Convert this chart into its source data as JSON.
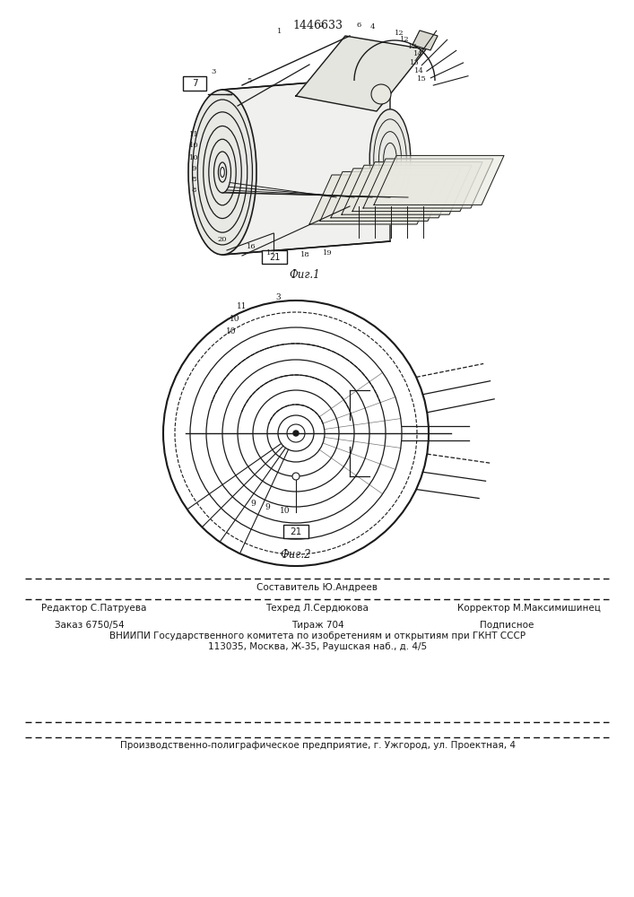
{
  "patent_number": "1446633",
  "fig1_label": "Фиг.1",
  "fig2_label": "Фиг.2",
  "editor_line": "Редактор С.Патруева",
  "composer_line": "Составитель Ю.Андреев",
  "techred_line": "Техред Л.Сердюкова",
  "corrector_line": "Корректор М.Максимишинец",
  "order_line": "Заказ 6750/54",
  "tirazh_line": "Тираж 704",
  "podpisnoe_line": "Подписное",
  "vniiipi_line": "ВНИИПИ Государственного комитета по изобретениям и открытиям при ГКНТ СССР",
  "address_line": "113035, Москва, Ж-35, Раушская наб., д. 4/5",
  "factory_line": "Производственно-полиграфическое предприятие, г. Ужгород, ул. Проектная, 4",
  "bg_color": "#ffffff",
  "line_color": "#1a1a1a",
  "text_color": "#1a1a1a"
}
